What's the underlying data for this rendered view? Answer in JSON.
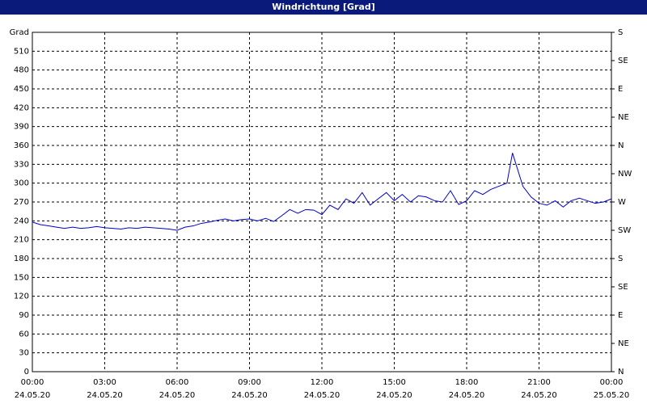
{
  "chart_data": {
    "type": "line",
    "title": "Windrichtung [Grad]",
    "x": [
      0,
      0.33,
      0.67,
      1,
      1.33,
      1.67,
      2,
      2.33,
      2.67,
      3,
      3.33,
      3.67,
      4,
      4.33,
      4.67,
      5,
      5.33,
      5.67,
      6,
      6.33,
      6.67,
      7,
      7.33,
      7.67,
      8,
      8.33,
      8.67,
      9,
      9.33,
      9.67,
      10,
      10.33,
      10.67,
      11,
      11.33,
      11.67,
      12,
      12.33,
      12.67,
      13,
      13.33,
      13.67,
      14,
      14.33,
      14.67,
      15,
      15.33,
      15.67,
      16,
      16.33,
      16.67,
      17,
      17.33,
      17.67,
      18,
      18.33,
      18.67,
      19,
      19.33,
      19.67,
      19.9,
      20.33,
      20.67,
      21,
      21.33,
      21.67,
      22,
      22.33,
      22.67,
      23,
      23.33,
      23.67,
      24
    ],
    "series": [
      {
        "name": "Windrichtung",
        "color": "#0000cc",
        "values": [
          238,
          234,
          232,
          230,
          228,
          230,
          228,
          229,
          231,
          229,
          228,
          227,
          229,
          228,
          230,
          229,
          228,
          227,
          225,
          230,
          232,
          236,
          238,
          241,
          243,
          240,
          242,
          243,
          240,
          244,
          239,
          248,
          258,
          252,
          258,
          257,
          250,
          265,
          258,
          275,
          268,
          285,
          265,
          275,
          285,
          272,
          282,
          270,
          280,
          278,
          272,
          270,
          288,
          266,
          272,
          288,
          282,
          290,
          295,
          300,
          348,
          295,
          278,
          268,
          265,
          272,
          262,
          272,
          276,
          272,
          268,
          270,
          275
        ]
      }
    ],
    "xlim": [
      0,
      24
    ],
    "xticks": [
      {
        "value": 0,
        "label": "00:00",
        "date": "24.05.20"
      },
      {
        "value": 3,
        "label": "03:00",
        "date": "24.05.20"
      },
      {
        "value": 6,
        "label": "06:00",
        "date": "24.05.20"
      },
      {
        "value": 9,
        "label": "09:00",
        "date": "24.05.20"
      },
      {
        "value": 12,
        "label": "12:00",
        "date": "24.05.20"
      },
      {
        "value": 15,
        "label": "15:00",
        "date": "24.05.20"
      },
      {
        "value": 18,
        "label": "18:00",
        "date": "24.05.20"
      },
      {
        "value": 21,
        "label": "21:00",
        "date": "24.05.20"
      },
      {
        "value": 24,
        "label": "00:00",
        "date": "25.05.20"
      }
    ],
    "ylim": [
      0,
      540
    ],
    "yticks": [
      0,
      30,
      60,
      90,
      120,
      150,
      180,
      210,
      240,
      270,
      300,
      330,
      360,
      390,
      420,
      450,
      480,
      510,
      {
        "value": 540,
        "label": "Grad"
      }
    ],
    "y2lim": [
      0,
      540
    ],
    "y2ticks": [
      {
        "value": 0,
        "label": "N"
      },
      {
        "value": 45,
        "label": "NE"
      },
      {
        "value": 90,
        "label": "E"
      },
      {
        "value": 135,
        "label": "SE"
      },
      {
        "value": 180,
        "label": "S"
      },
      {
        "value": 225,
        "label": "SW"
      },
      {
        "value": 270,
        "label": "W"
      },
      {
        "value": 315,
        "label": "NW"
      },
      {
        "value": 360,
        "label": "N"
      },
      {
        "value": 405,
        "label": "NE"
      },
      {
        "value": 450,
        "label": "E"
      },
      {
        "value": 495,
        "label": "SE"
      },
      {
        "value": 540,
        "label": "S"
      }
    ],
    "grid": true
  }
}
